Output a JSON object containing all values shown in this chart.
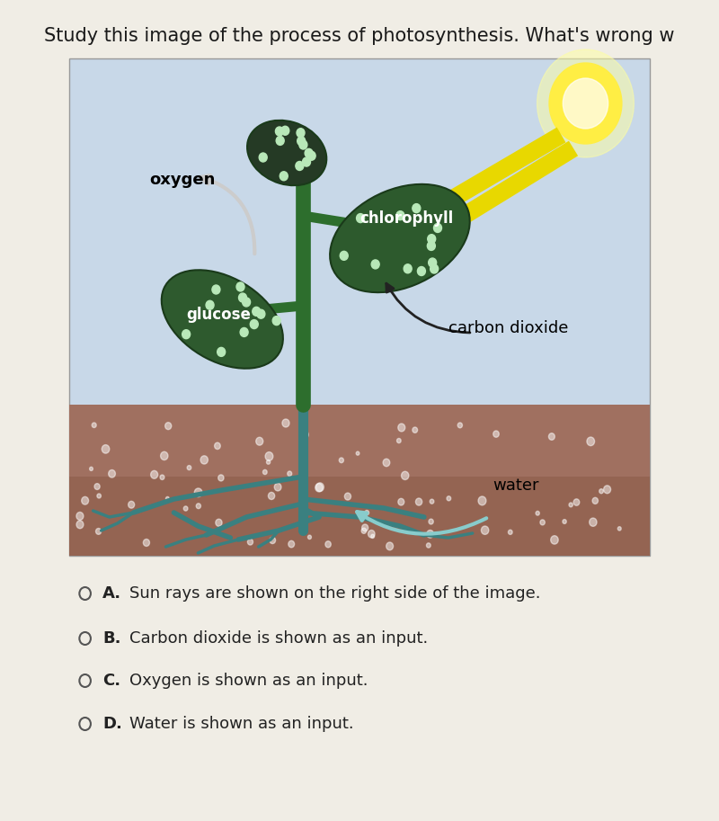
{
  "title": "Study this image of the process of photosynthesis. What's wrong w",
  "title_fontsize": 15,
  "title_color": "#1a1a1a",
  "bg_color": "#f0ede5",
  "image_bg": "#c8d8e8",
  "soil_color": "#a07060",
  "soil_dark": "#8a5a45",
  "stem_color": "#2d6e2d",
  "root_color": "#3a8080",
  "leaf_dark": "#2d5a2d",
  "leaf_dots": "#b8e8b8",
  "sun_yellow": "#ffee44",
  "sun_glow": "#ffffa0",
  "arrow_yellow": "#e8d800",
  "arrow_dark": "#333333",
  "oxygen_arrow": "#d8d8d8",
  "water_arrow": "#88cccc",
  "label_oxygen": "oxygen",
  "label_chlorophyll": "chlorophyll",
  "label_glucose": "glucose",
  "label_carbon_dioxide": "carbon dioxide",
  "label_water": "water",
  "options": [
    "A.",
    "B.",
    "C.",
    "D."
  ],
  "option_texts": [
    "Sun rays are shown on the right side of the image.",
    "Carbon dioxide is shown as an input.",
    "Oxygen is shown as an input.",
    "Water is shown as an input."
  ],
  "option_fontsize": 13,
  "label_fontsize": 13,
  "label_fontsize_small": 12
}
